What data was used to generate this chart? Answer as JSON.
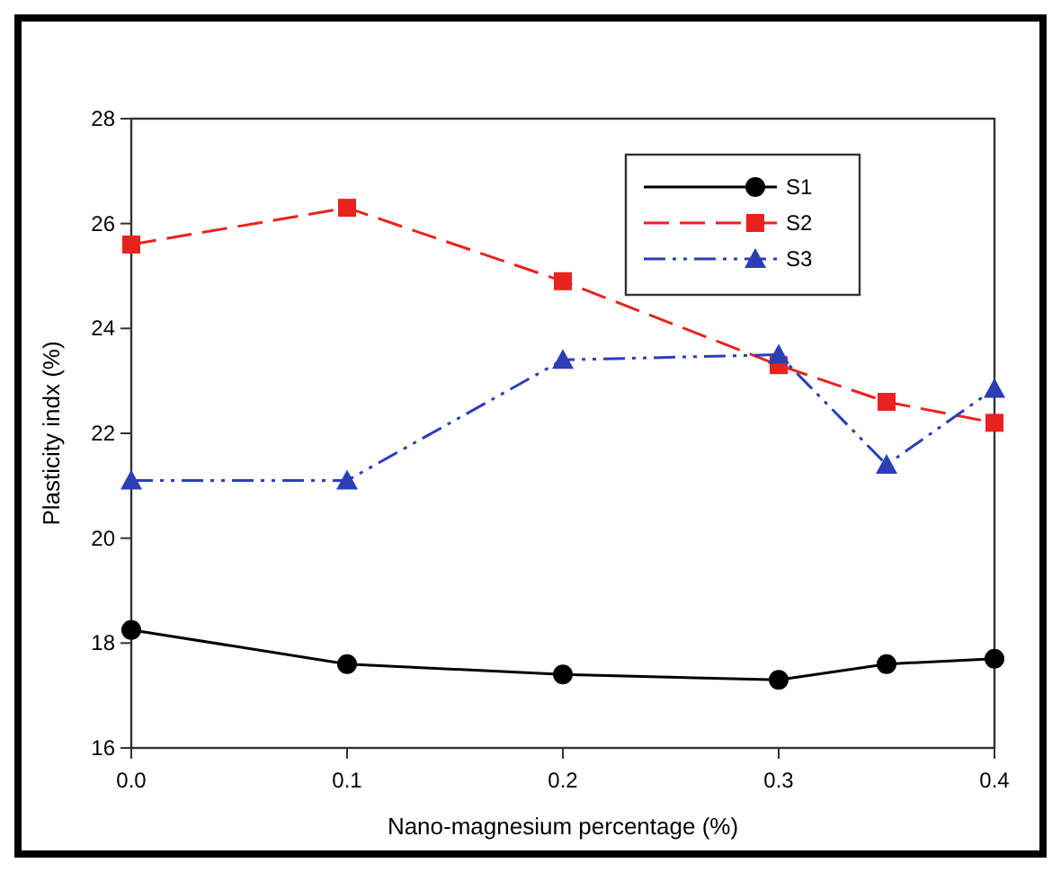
{
  "chart_data": {
    "type": "line",
    "xlabel": "Nano-magnesium percentage (%)",
    "ylabel": "Plasticity indx (%)",
    "x": [
      0,
      0.1,
      0.2,
      0.3,
      0.35,
      0.4
    ],
    "xlim": [
      0,
      0.4
    ],
    "xticks": [
      {
        "value": 0,
        "label": "0.0"
      },
      0.1,
      0.2,
      0.3,
      0.4
    ],
    "ylim": [
      16,
      28
    ],
    "yticks": [
      16,
      18,
      20,
      22,
      24,
      26,
      28
    ],
    "legend": "top right",
    "grid": false,
    "series": [
      {
        "name": "S1",
        "color": "#000000",
        "marker": "circle",
        "line_style": "solid",
        "values": [
          18.25,
          17.6,
          17.4,
          17.3,
          17.6,
          17.7
        ]
      },
      {
        "name": "S2",
        "color": "#e8221e",
        "marker": "square",
        "line_style": "dashed",
        "values": [
          25.6,
          26.3,
          24.9,
          23.3,
          22.6,
          22.2
        ]
      },
      {
        "name": "S3",
        "color": "#2b3fb5",
        "marker": "triangle",
        "line_style": "dashdotdot",
        "values": [
          21.1,
          21.1,
          23.4,
          23.5,
          21.4,
          22.85
        ]
      }
    ]
  }
}
